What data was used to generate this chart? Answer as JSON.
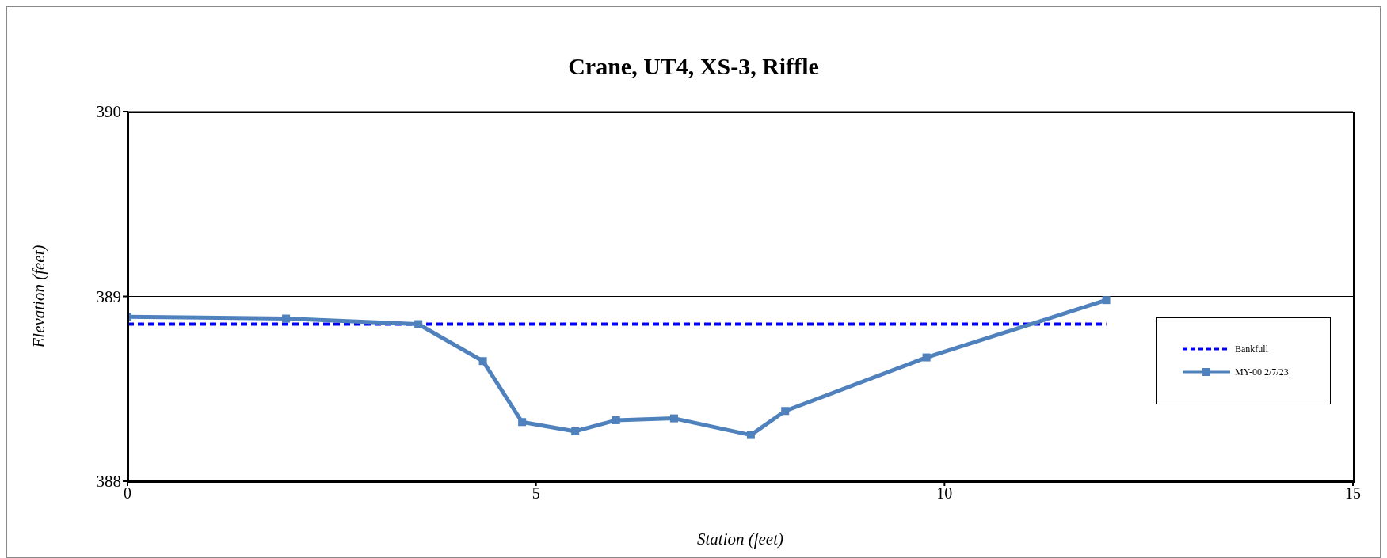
{
  "chart_data": {
    "type": "line",
    "title": "Crane, UT4, XS-3, Riffle",
    "xlabel": "Station (feet)",
    "ylabel": "Elevation (feet)",
    "xlim": [
      0,
      15
    ],
    "xticks": [
      0,
      5,
      10,
      15
    ],
    "ylim": [
      388,
      390
    ],
    "yticks": [
      388,
      389,
      390
    ],
    "grid": "y",
    "legend": "right",
    "series": [
      {
        "name": "Bankfull",
        "color": "#0000ff",
        "line_style": "dashed",
        "marker": "none",
        "x": [
          0,
          11.98
        ],
        "values": [
          388.85,
          388.85
        ]
      },
      {
        "name": "MY-00 2/7/23",
        "color": "#4f81bd",
        "line_style": "solid",
        "marker": "square",
        "x": [
          0,
          1.94,
          3.56,
          4.35,
          4.83,
          5.48,
          5.98,
          6.69,
          7.63,
          8.05,
          9.78,
          11.98
        ],
        "values": [
          388.89,
          388.88,
          388.85,
          388.65,
          388.32,
          388.27,
          388.33,
          388.34,
          388.25,
          388.38,
          388.67,
          388.98
        ]
      }
    ]
  }
}
